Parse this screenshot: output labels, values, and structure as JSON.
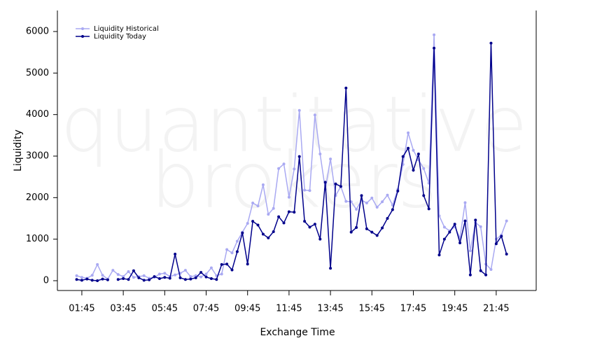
{
  "chart_data": {
    "type": "line",
    "watermark": [
      "quantitative",
      "brokers"
    ],
    "xlabel": "Exchange Time",
    "ylabel": "Liquidity",
    "x": [
      1.5,
      1.75,
      2,
      2.25,
      2.5,
      2.75,
      3,
      3.25,
      3.5,
      3.75,
      4,
      4.25,
      4.5,
      4.75,
      5,
      5.25,
      5.5,
      5.75,
      6,
      6.25,
      6.5,
      6.75,
      7,
      7.25,
      7.5,
      7.75,
      8,
      8.25,
      8.5,
      8.75,
      9,
      9.25,
      9.5,
      9.75,
      10,
      10.25,
      10.5,
      10.75,
      11,
      11.25,
      11.5,
      11.75,
      12,
      12.25,
      12.5,
      12.75,
      13,
      13.25,
      13.5,
      13.75,
      14,
      14.25,
      14.5,
      14.75,
      15,
      15.25,
      15.5,
      15.75,
      16,
      16.25,
      16.5,
      16.75,
      17,
      17.25,
      17.5,
      17.75,
      18,
      18.25,
      18.5,
      18.75,
      19,
      19.25,
      19.5,
      19.75,
      20,
      20.25,
      20.5,
      20.75,
      21,
      21.25,
      21.5,
      21.75,
      22,
      22.25
    ],
    "series": [
      {
        "name": "Liquidity Historical",
        "color": "#a9a9f2",
        "values": [
          120,
          80,
          60,
          130,
          390,
          130,
          40,
          250,
          150,
          100,
          220,
          80,
          100,
          120,
          60,
          80,
          160,
          180,
          100,
          140,
          180,
          250,
          100,
          120,
          90,
          160,
          310,
          120,
          160,
          750,
          670,
          950,
          1170,
          1380,
          1870,
          1800,
          2310,
          1600,
          1740,
          2700,
          2810,
          2010,
          2690,
          4100,
          2180,
          2170,
          3990,
          3050,
          2200,
          2930,
          2050,
          2270,
          1910,
          1900,
          1720,
          1940,
          1870,
          1990,
          1770,
          1900,
          2060,
          1820,
          2200,
          2800,
          3560,
          3140,
          2910,
          2700,
          2350,
          5920,
          1560,
          1290,
          1200,
          1300,
          1030,
          1880,
          720,
          1400,
          1300,
          400,
          270,
          1000,
          1100,
          1440
        ]
      },
      {
        "name": "Liquidity Today",
        "color": "#00008b",
        "values": [
          30,
          10,
          40,
          10,
          0,
          40,
          20,
          null,
          30,
          50,
          30,
          240,
          70,
          10,
          20,
          100,
          50,
          80,
          60,
          640,
          70,
          30,
          40,
          70,
          200,
          90,
          50,
          30,
          390,
          400,
          260,
          700,
          1150,
          400,
          1430,
          1340,
          1120,
          1030,
          1180,
          1540,
          1390,
          1660,
          1650,
          2990,
          1430,
          1290,
          1360,
          1000,
          2370,
          300,
          2330,
          2270,
          4640,
          1170,
          1280,
          2050,
          1250,
          1170,
          1090,
          1270,
          1500,
          1710,
          2160,
          2990,
          3190,
          2660,
          3050,
          2050,
          1730,
          5600,
          620,
          1000,
          1170,
          1360,
          910,
          1440,
          140,
          1460,
          240,
          140,
          5720,
          890,
          1070,
          640
        ]
      }
    ],
    "xlim": [
      0.57,
      23.68
    ],
    "ylim": [
      -236,
      6506
    ],
    "xticks": [
      {
        "value": 1.75,
        "label": "01:45"
      },
      {
        "value": 3.75,
        "label": "03:45"
      },
      {
        "value": 5.75,
        "label": "05:45"
      },
      {
        "value": 7.75,
        "label": "07:45"
      },
      {
        "value": 9.75,
        "label": "09:45"
      },
      {
        "value": 11.75,
        "label": "11:45"
      },
      {
        "value": 13.75,
        "label": "13:45"
      },
      {
        "value": 15.75,
        "label": "15:45"
      },
      {
        "value": 17.75,
        "label": "17:45"
      },
      {
        "value": 19.75,
        "label": "19:45"
      },
      {
        "value": 21.75,
        "label": "21:45"
      }
    ],
    "yticks": [
      0,
      1000,
      2000,
      3000,
      4000,
      5000,
      6000
    ],
    "legend": "top-left",
    "grid": false
  }
}
